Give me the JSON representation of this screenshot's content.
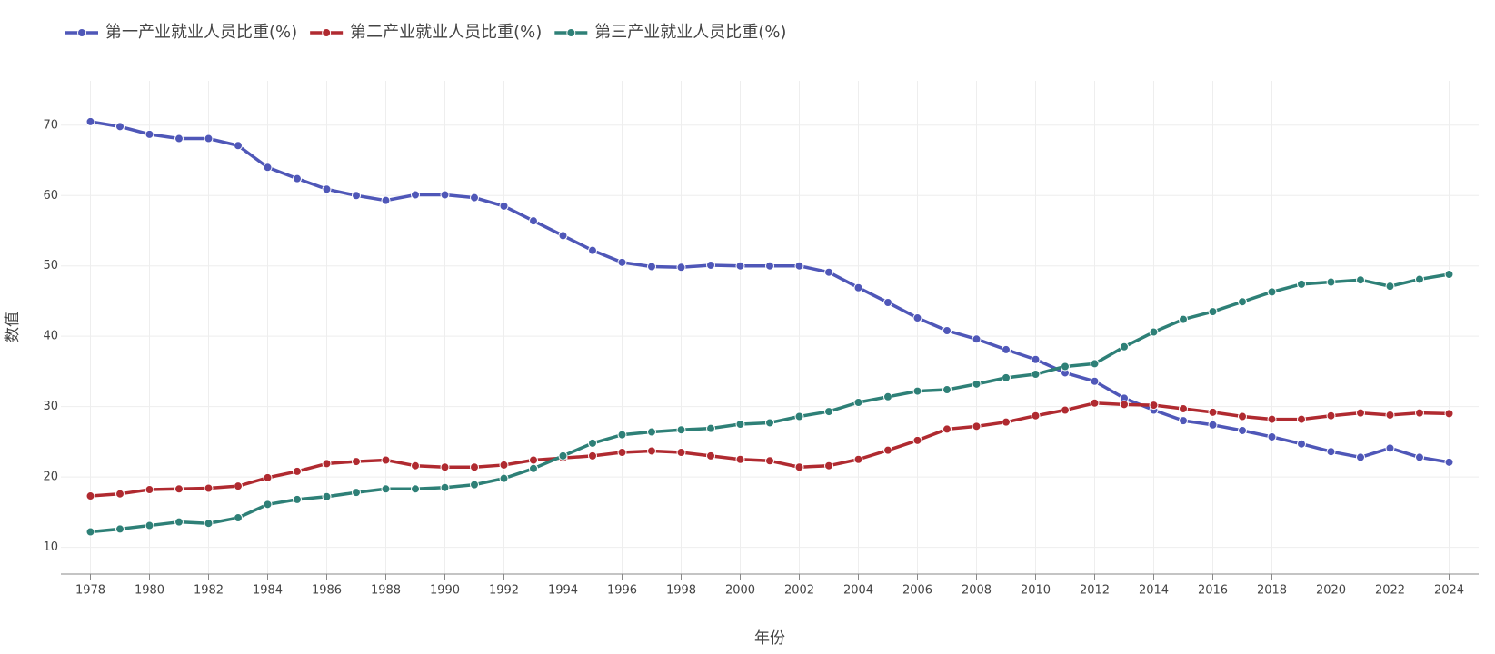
{
  "chart_data": {
    "type": "line",
    "x": [
      1978,
      1979,
      1980,
      1981,
      1982,
      1983,
      1984,
      1985,
      1986,
      1987,
      1988,
      1989,
      1990,
      1991,
      1992,
      1993,
      1994,
      1995,
      1996,
      1997,
      1998,
      1999,
      2000,
      2001,
      2002,
      2003,
      2004,
      2005,
      2006,
      2007,
      2008,
      2009,
      2010,
      2011,
      2012,
      2013,
      2014,
      2015,
      2016,
      2017,
      2018,
      2019,
      2020,
      2021,
      2022,
      2023,
      2024
    ],
    "series": [
      {
        "name": "第一产业就业人员比重(%)",
        "color": "#4f57b8",
        "values": [
          70.5,
          69.8,
          68.7,
          68.1,
          68.1,
          67.1,
          64.0,
          62.4,
          60.9,
          60.0,
          59.3,
          60.1,
          60.1,
          59.7,
          58.5,
          56.4,
          54.3,
          52.2,
          50.5,
          49.9,
          49.8,
          50.1,
          50.0,
          50.0,
          50.0,
          49.1,
          46.9,
          44.8,
          42.6,
          40.8,
          39.6,
          38.1,
          36.7,
          34.8,
          33.6,
          31.2,
          29.5,
          28.0,
          27.4,
          26.6,
          25.7,
          24.7,
          23.6,
          22.8,
          24.1,
          22.8,
          22.1
        ]
      },
      {
        "name": "第二产业就业人员比重(%)",
        "color": "#b02a30",
        "values": [
          17.3,
          17.6,
          18.2,
          18.3,
          18.4,
          18.7,
          19.9,
          20.8,
          21.9,
          22.2,
          22.4,
          21.6,
          21.4,
          21.4,
          21.7,
          22.4,
          22.7,
          23.0,
          23.5,
          23.7,
          23.5,
          23.0,
          22.5,
          22.3,
          21.4,
          21.6,
          22.5,
          23.8,
          25.2,
          26.8,
          27.2,
          27.8,
          28.7,
          29.5,
          30.5,
          30.3,
          30.2,
          29.7,
          29.2,
          28.6,
          28.2,
          28.2,
          28.7,
          29.1,
          28.8,
          29.1,
          29.0
        ]
      },
      {
        "name": "第三产业就业人员比重(%)",
        "color": "#2e8077",
        "values": [
          12.2,
          12.6,
          13.1,
          13.6,
          13.4,
          14.2,
          16.1,
          16.8,
          17.2,
          17.8,
          18.3,
          18.3,
          18.5,
          18.9,
          19.8,
          21.2,
          23.0,
          24.8,
          26.0,
          26.4,
          26.7,
          26.9,
          27.5,
          27.7,
          28.6,
          29.3,
          30.6,
          31.4,
          32.2,
          32.4,
          33.2,
          34.1,
          34.6,
          35.7,
          36.1,
          38.5,
          40.6,
          42.4,
          43.5,
          44.9,
          46.3,
          47.4,
          47.7,
          48.0,
          47.1,
          48.1,
          48.8
        ]
      }
    ],
    "xlabel": "年份",
    "ylabel": "数值",
    "xlim": [
      1977,
      2025
    ],
    "xticks": [
      1978,
      1980,
      1982,
      1984,
      1986,
      1988,
      1990,
      1992,
      1994,
      1996,
      1998,
      2000,
      2002,
      2004,
      2006,
      2008,
      2010,
      2012,
      2014,
      2016,
      2018,
      2020,
      2022,
      2024
    ],
    "ylim": [
      6.2,
      76.3
    ],
    "yticks": [
      10,
      20,
      30,
      40,
      50,
      60,
      70
    ],
    "grid": true,
    "legend": "top-left"
  }
}
